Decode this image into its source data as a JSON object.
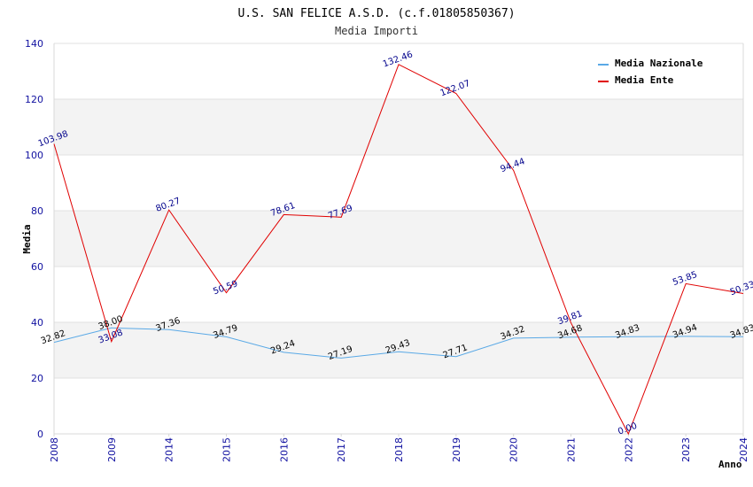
{
  "chart_data": {
    "type": "line",
    "title": "U.S. SAN FELICE A.S.D. (c.f.01805850367)",
    "subtitle": "Media Importi",
    "xlabel": "Anno",
    "ylabel": "Media",
    "categories": [
      "2008",
      "2009",
      "2014",
      "2015",
      "2016",
      "2017",
      "2018",
      "2019",
      "2020",
      "2021",
      "2022",
      "2023",
      "2024"
    ],
    "ylim": [
      0,
      140
    ],
    "yticks": [
      0,
      20,
      40,
      60,
      80,
      100,
      120,
      140
    ],
    "grid": "horizontal bands",
    "legend_position": "top-right",
    "series": [
      {
        "name": "Media Nazionale",
        "color": "#5aa9e6",
        "values": [
          32.82,
          38.0,
          37.36,
          34.79,
          29.24,
          27.19,
          29.43,
          27.71,
          34.32,
          34.68,
          34.83,
          34.94,
          34.83
        ],
        "labels": [
          "32.82",
          "38.00",
          "37.36",
          "34.79",
          "29.24",
          "27.19",
          "29.43",
          "27.71",
          "34.32",
          "34.68",
          "34.83",
          "34.94",
          "34.83"
        ]
      },
      {
        "name": "Media Ente",
        "color": "#e00000",
        "values": [
          103.98,
          33.08,
          80.27,
          50.59,
          78.61,
          77.69,
          132.46,
          122.07,
          94.44,
          39.81,
          0.0,
          53.85,
          50.33
        ],
        "labels": [
          "103.98",
          "33.08",
          "80.27",
          "50.59",
          "78.61",
          "77.69",
          "132.46",
          "122.07",
          "94.44",
          "39.81",
          "0.00",
          "53.85",
          "50.33"
        ]
      }
    ]
  }
}
